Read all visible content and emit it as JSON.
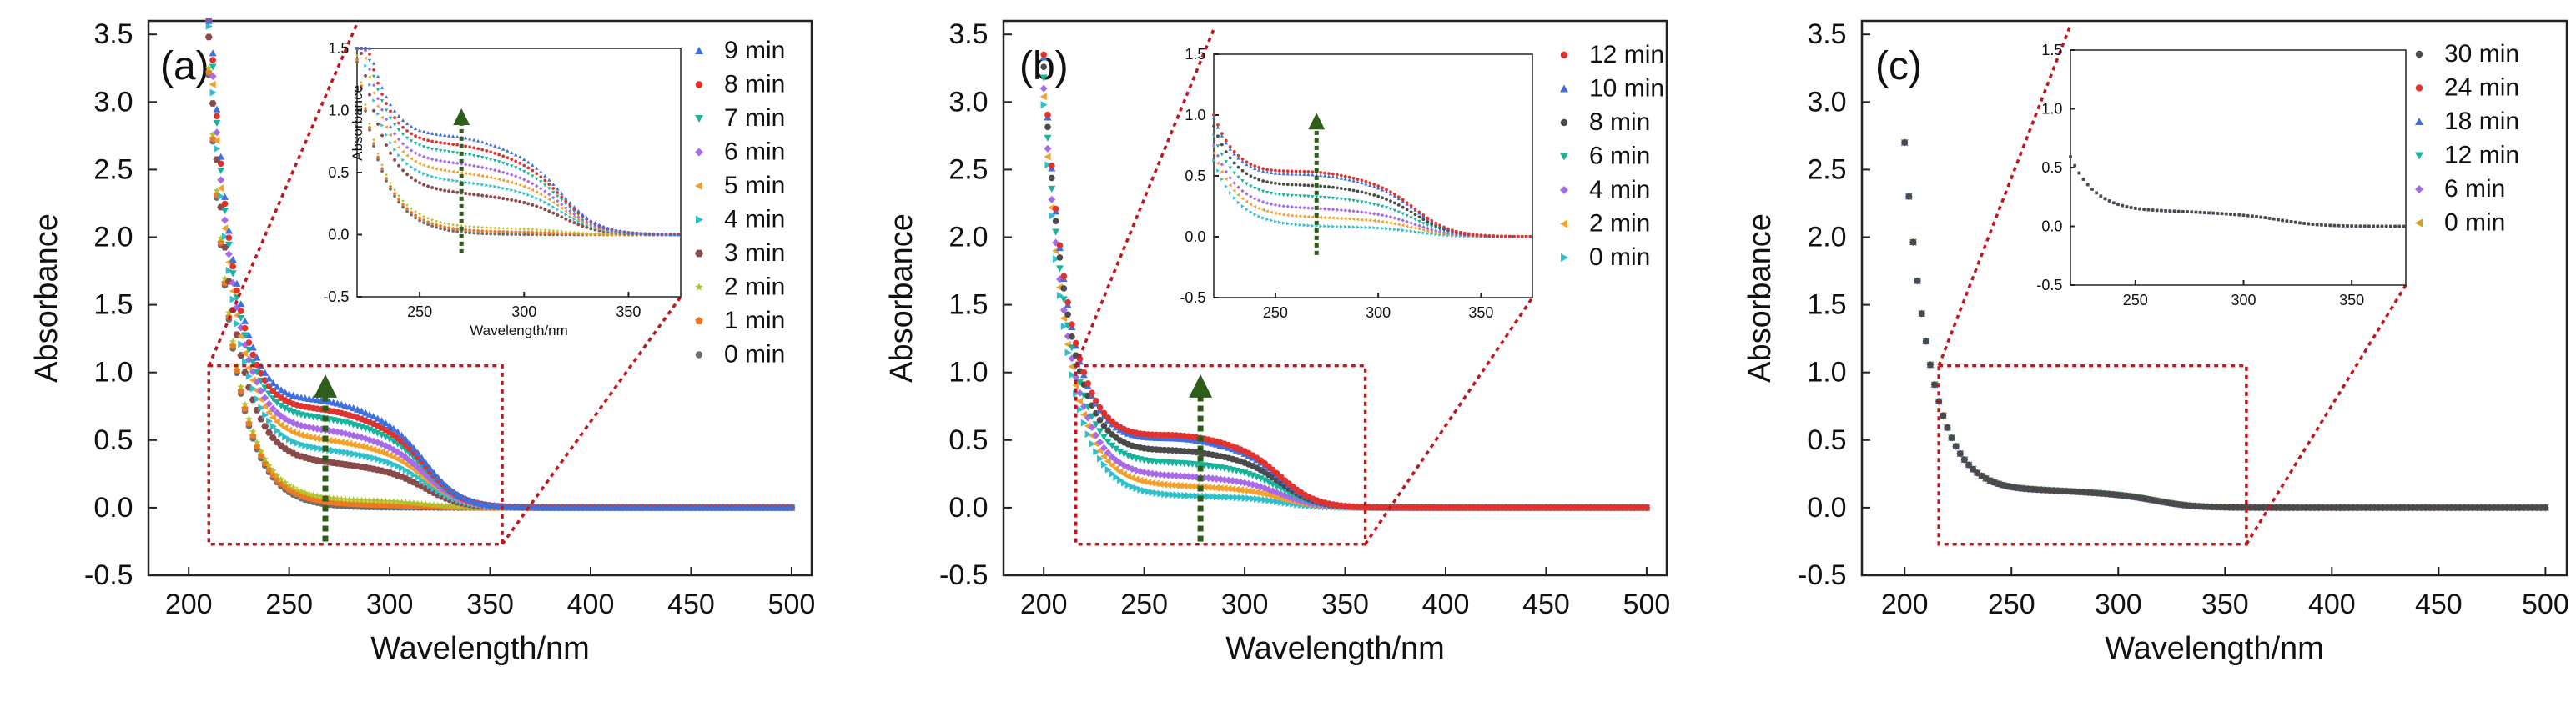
{
  "chart_data": [
    {
      "type": "scatter",
      "panel_label": "(a)",
      "xlabel": "Wavelength/nm",
      "ylabel": "Absorbance",
      "xlim": [
        180,
        510
      ],
      "ylim": [
        -0.5,
        3.6
      ],
      "x_ticks": [
        "200",
        "250",
        "300",
        "350",
        "400",
        "450",
        "500"
      ],
      "y_ticks": [
        "-0.5",
        "0.0",
        "0.5",
        "1.0",
        "1.5",
        "2.0",
        "2.5",
        "3.0",
        "3.5"
      ],
      "x_start": 210,
      "peak": 3.3,
      "arrow_x": 268,
      "legend_position": "top-right",
      "series": [
        {
          "name": "9 min",
          "color": "#3d6fe0",
          "marker": "triangle",
          "plateau": 0.65,
          "shoulder": 0.62
        },
        {
          "name": "8 min",
          "color": "#e0332f",
          "marker": "circle",
          "plateau": 0.6,
          "shoulder": 0.56
        },
        {
          "name": "7 min",
          "color": "#15b49b",
          "marker": "triangle-down",
          "plateau": 0.55,
          "shoulder": 0.5
        },
        {
          "name": "6 min",
          "color": "#a86ae8",
          "marker": "diamond",
          "plateau": 0.48,
          "shoulder": 0.43
        },
        {
          "name": "5 min",
          "color": "#f2a12d",
          "marker": "triangle-left",
          "plateau": 0.42,
          "shoulder": 0.37
        },
        {
          "name": "4 min",
          "color": "#2fc0cc",
          "marker": "triangle-right",
          "plateau": 0.36,
          "shoulder": 0.31
        },
        {
          "name": "3 min",
          "color": "#8b4a4a",
          "marker": "hexagon",
          "plateau": 0.28,
          "shoulder": 0.24
        },
        {
          "name": "2 min",
          "color": "#b5c12a",
          "marker": "star",
          "plateau": 0.05,
          "shoulder": 0.02
        },
        {
          "name": "1 min",
          "color": "#f07722",
          "marker": "pentagon",
          "plateau": 0.02,
          "shoulder": 0.0
        },
        {
          "name": "0 min",
          "color": "#6e6e6e",
          "marker": "circle",
          "plateau": 0.0,
          "shoulder": 0.0
        }
      ],
      "inset": {
        "xlabel": "Wavelength/nm",
        "ylabel": "Absorbance",
        "xlim": [
          220,
          375
        ],
        "ylim": [
          -0.5,
          1.5
        ],
        "x_ticks": [
          "250",
          "300",
          "350"
        ],
        "y_ticks": [
          "-0.5",
          "0.0",
          "0.5",
          "1.0",
          "1.5"
        ],
        "arrow_x": 270
      }
    },
    {
      "type": "scatter",
      "panel_label": "(b)",
      "xlabel": "Wavelength/nm",
      "ylabel": "Absorbance",
      "xlim": [
        180,
        510
      ],
      "ylim": [
        -0.5,
        3.6
      ],
      "x_ticks": [
        "200",
        "250",
        "300",
        "350",
        "400",
        "450",
        "500"
      ],
      "y_ticks": [
        "-0.5",
        "0.0",
        "0.5",
        "1.0",
        "1.5",
        "2.0",
        "2.5",
        "3.0",
        "3.5"
      ],
      "x_start": 200,
      "peak": 3.0,
      "arrow_x": 278,
      "legend_position": "top-right",
      "series": [
        {
          "name": "12 min",
          "color": "#e0332f",
          "marker": "circle",
          "plateau": 0.45,
          "shoulder": 0.42
        },
        {
          "name": "10 min",
          "color": "#3d6fe0",
          "marker": "triangle",
          "plateau": 0.43,
          "shoulder": 0.4
        },
        {
          "name": "8 min",
          "color": "#4a4a4a",
          "marker": "circle",
          "plateau": 0.36,
          "shoulder": 0.32
        },
        {
          "name": "6 min",
          "color": "#15b49b",
          "marker": "triangle-down",
          "plateau": 0.28,
          "shoulder": 0.25
        },
        {
          "name": "4 min",
          "color": "#a86ae8",
          "marker": "diamond",
          "plateau": 0.2,
          "shoulder": 0.17
        },
        {
          "name": "2 min",
          "color": "#f2a12d",
          "marker": "triangle-left",
          "plateau": 0.14,
          "shoulder": 0.11
        },
        {
          "name": "0 min",
          "color": "#2fc0cc",
          "marker": "triangle-right",
          "plateau": 0.08,
          "shoulder": 0.05
        }
      ],
      "inset": {
        "xlabel": "",
        "ylabel": "",
        "xlim": [
          220,
          375
        ],
        "ylim": [
          -0.5,
          1.5
        ],
        "x_ticks": [
          "250",
          "300",
          "350"
        ],
        "y_ticks": [
          "-0.5",
          "0.0",
          "0.5",
          "1.0",
          "1.5"
        ],
        "arrow_x": 270
      }
    },
    {
      "type": "scatter",
      "panel_label": "(c)",
      "xlabel": "Wavelength/nm",
      "ylabel": "Absorbance",
      "xlim": [
        180,
        510
      ],
      "ylim": [
        -0.5,
        3.6
      ],
      "x_ticks": [
        "200",
        "250",
        "300",
        "350",
        "400",
        "450",
        "500"
      ],
      "y_ticks": [
        "-0.5",
        "0.0",
        "0.5",
        "1.0",
        "1.5",
        "2.0",
        "2.5",
        "3.0",
        "3.5"
      ],
      "x_start": 200,
      "peak": 2.7,
      "arrow_x": null,
      "legend_position": "top-right",
      "series": [
        {
          "name": "30 min",
          "color": "#4a4a4a",
          "marker": "circle",
          "plateau": 0.1,
          "shoulder": 0.1
        },
        {
          "name": "24 min",
          "color": "#e0332f",
          "marker": "circle",
          "plateau": 0.1,
          "shoulder": 0.1
        },
        {
          "name": "18 min",
          "color": "#3d6fe0",
          "marker": "triangle",
          "plateau": 0.1,
          "shoulder": 0.1
        },
        {
          "name": "12 min",
          "color": "#15b49b",
          "marker": "triangle-down",
          "plateau": 0.1,
          "shoulder": 0.1
        },
        {
          "name": "6 min",
          "color": "#a86ae8",
          "marker": "diamond",
          "plateau": 0.1,
          "shoulder": 0.1
        },
        {
          "name": "0 min",
          "color": "#d4a017",
          "marker": "triangle-left",
          "plateau": 0.1,
          "shoulder": 0.1
        }
      ],
      "inset": {
        "xlabel": "",
        "ylabel": "",
        "xlim": [
          220,
          375
        ],
        "ylim": [
          -0.5,
          1.5
        ],
        "x_ticks": [
          "250",
          "300",
          "350"
        ],
        "y_ticks": [
          "-0.5",
          "0.0",
          "0.5",
          "1.0",
          "1.5"
        ],
        "arrow_x": null
      }
    }
  ]
}
